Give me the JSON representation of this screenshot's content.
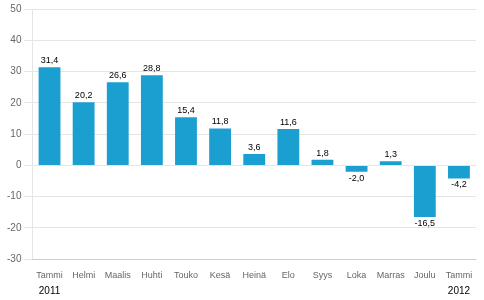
{
  "chart_data": {
    "type": "bar",
    "categories": [
      "Tammi",
      "Helmi",
      "Maalis",
      "Huhti",
      "Touko",
      "Kesä",
      "Heinä",
      "Elo",
      "Syys",
      "Loka",
      "Marras",
      "Joulu",
      "Tammi"
    ],
    "values": [
      31.4,
      20.2,
      26.6,
      28.8,
      15.4,
      11.8,
      3.6,
      11.6,
      1.8,
      -2.0,
      1.3,
      -16.5,
      -4.2
    ],
    "value_labels": [
      "31,4",
      "20,2",
      "26,6",
      "28,8",
      "15,4",
      "11,8",
      "3,6",
      "11,6",
      "1,8",
      "-2,0",
      "1,3",
      "-16,5",
      "-4,2"
    ],
    "color": "#1b9fd0",
    "ylim": [
      -30,
      50
    ],
    "yticks": [
      -30,
      -20,
      -10,
      0,
      10,
      20,
      30,
      40,
      50
    ],
    "grid": true,
    "annotations": [
      {
        "text": "2011",
        "index": 0
      },
      {
        "text": "2012",
        "index": 12
      }
    ]
  }
}
